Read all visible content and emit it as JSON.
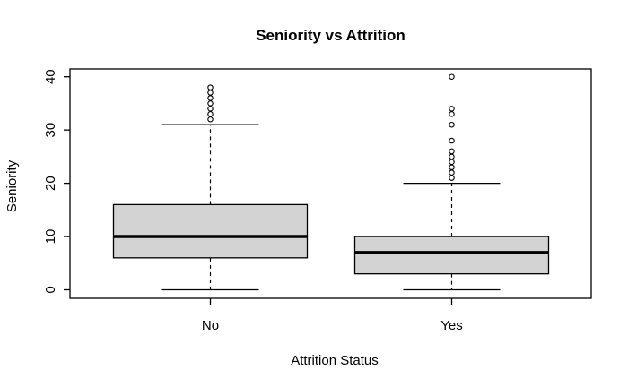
{
  "title": "Seniority vs Attrition",
  "chart_data": {
    "type": "boxplot",
    "title": "Seniority vs Attrition",
    "xlabel": "Attrition Status",
    "ylabel": "Seniority",
    "categories": [
      "No",
      "Yes"
    ],
    "series": [
      {
        "name": "No",
        "whisker_low": 0,
        "q1": 6,
        "median": 10,
        "q3": 16,
        "whisker_high": 31,
        "outliers": [
          32,
          33,
          34,
          35,
          36,
          37,
          38
        ]
      },
      {
        "name": "Yes",
        "whisker_low": 0,
        "q1": 3,
        "median": 7,
        "q3": 10,
        "whisker_high": 20,
        "outliers": [
          21,
          22,
          23,
          24,
          25,
          26,
          28,
          31,
          33,
          34,
          40
        ]
      }
    ],
    "ylim": [
      0,
      40
    ],
    "yticks": [
      0,
      10,
      20,
      30,
      40
    ],
    "grid": false,
    "legend": null,
    "colors": {
      "box_fill": "#d3d3d3",
      "stroke": "#000000",
      "background": "#ffffff"
    }
  }
}
